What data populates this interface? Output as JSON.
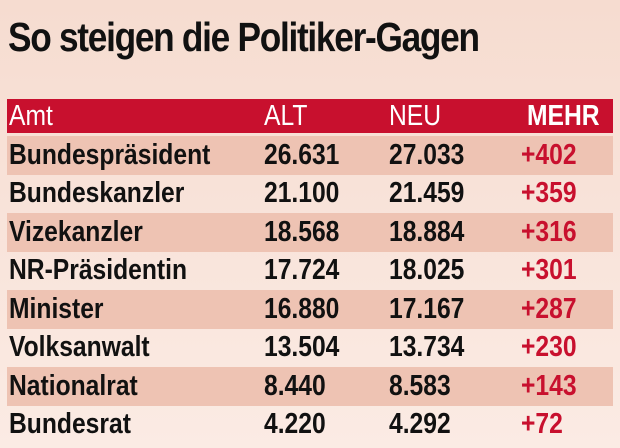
{
  "title": "So steigen die Politiker-Gagen",
  "colors": {
    "header": "#c8102e",
    "accent": "#c8102e",
    "row_shade": "#eec3b3"
  },
  "chart_data": {
    "type": "table",
    "title": "So steigen die Politiker-Gagen",
    "columns": [
      "Amt",
      "ALT",
      "NEU",
      "MEHR"
    ],
    "rows": [
      [
        "Bundespräsident",
        "26.631",
        "27.033",
        "+402"
      ],
      [
        "Bundeskanzler",
        "21.100",
        "21.459",
        "+359"
      ],
      [
        "Vizekanzler",
        "18.568",
        "18.884",
        "+316"
      ],
      [
        "NR-Präsidentin",
        "17.724",
        "18.025",
        "+301"
      ],
      [
        "Minister",
        "16.880",
        "17.167",
        "+287"
      ],
      [
        "Volksanwalt",
        "13.504",
        "13.734",
        "+230"
      ],
      [
        "Nationalrat",
        "8.440",
        "8.583",
        "+143"
      ],
      [
        "Bundesrat",
        "4.220",
        "4.292",
        "+72"
      ]
    ]
  }
}
